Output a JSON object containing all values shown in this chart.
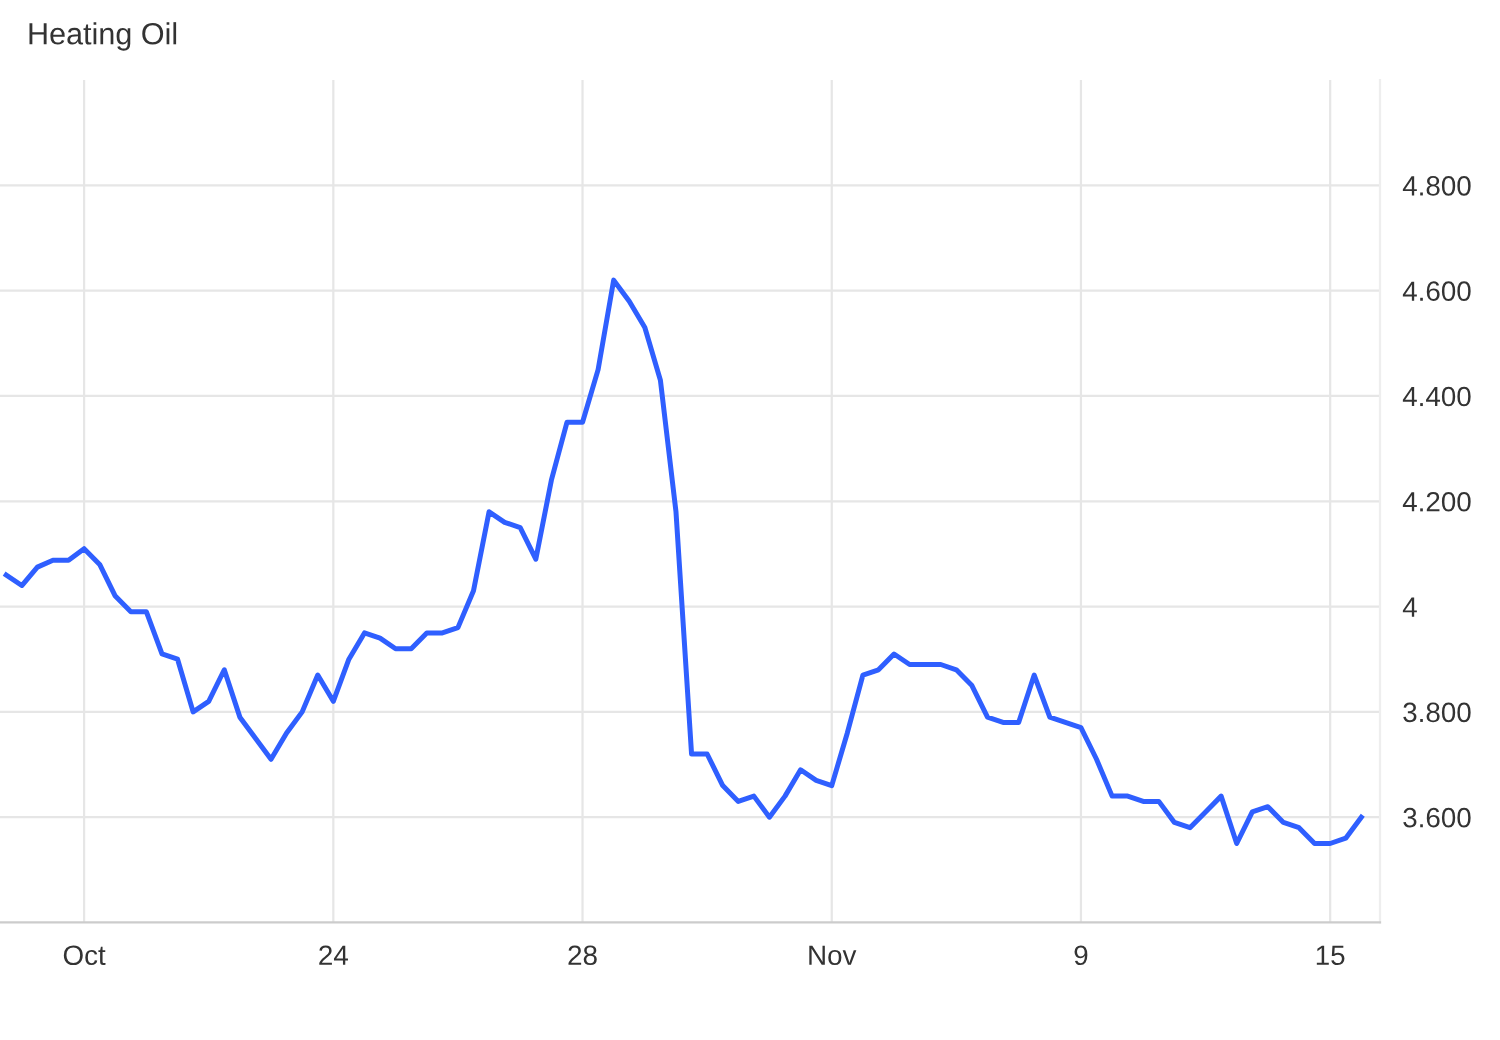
{
  "chart_data": {
    "type": "line",
    "title": "Heating Oil",
    "categories": [
      null,
      null,
      null,
      null,
      null,
      "Oct",
      null,
      null,
      null,
      null,
      null,
      null,
      null,
      null,
      null,
      null,
      null,
      null,
      null,
      null,
      null,
      "24",
      null,
      null,
      null,
      null,
      null,
      null,
      null,
      null,
      null,
      null,
      null,
      null,
      null,
      null,
      null,
      "28",
      null,
      null,
      null,
      null,
      null,
      null,
      null,
      null,
      null,
      null,
      null,
      null,
      null,
      null,
      null,
      "Nov",
      null,
      null,
      null,
      null,
      null,
      null,
      null,
      null,
      null,
      null,
      null,
      null,
      null,
      null,
      null,
      "9",
      null,
      null,
      null,
      null,
      null,
      null,
      null,
      null,
      null,
      null,
      null,
      null,
      null,
      null,
      null,
      "15",
      null,
      null
    ],
    "series": [
      {
        "color": "#2f5fff",
        "values": [
          4.06,
          4.04,
          4.075,
          4.088,
          4.088,
          4.11,
          4.08,
          4.02,
          3.99,
          3.99,
          3.91,
          3.9,
          3.8,
          3.82,
          3.88,
          3.79,
          3.75,
          3.71,
          3.76,
          3.8,
          3.87,
          3.82,
          3.9,
          3.95,
          3.94,
          3.92,
          3.92,
          3.95,
          3.95,
          3.96,
          4.03,
          4.18,
          4.16,
          4.15,
          4.09,
          4.24,
          4.35,
          4.35,
          4.45,
          4.62,
          4.58,
          4.53,
          4.43,
          4.18,
          3.72,
          3.72,
          3.66,
          3.63,
          3.64,
          3.6,
          3.64,
          3.69,
          3.67,
          3.66,
          3.76,
          3.87,
          3.88,
          3.91,
          3.89,
          3.89,
          3.89,
          3.88,
          3.85,
          3.79,
          3.78,
          3.78,
          3.87,
          3.79,
          3.78,
          3.77,
          3.71,
          3.64,
          3.64,
          3.63,
          3.63,
          3.59,
          3.58,
          3.61,
          3.64,
          3.55,
          3.61,
          3.62,
          3.59,
          3.58,
          3.55,
          3.55,
          3.56,
          3.6
        ]
      }
    ],
    "ylim": [
      3.4,
      5.0
    ],
    "yticks": [
      {
        "value": 3.6,
        "label": "3.600"
      },
      {
        "value": 3.8,
        "label": "3.800"
      },
      4,
      {
        "value": 4.2,
        "label": "4.200"
      },
      {
        "value": 4.4,
        "label": "4.400"
      },
      {
        "value": 4.6,
        "label": "4.600"
      },
      {
        "value": 4.8,
        "label": "4.800"
      }
    ],
    "grid": true,
    "marker": "none",
    "line_style": "solid"
  }
}
